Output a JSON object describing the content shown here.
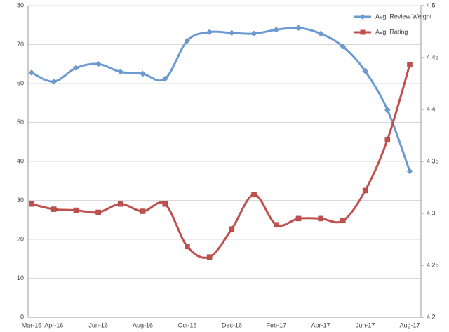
{
  "chart_data": {
    "type": "line",
    "categories": [
      "Mar-16",
      "Apr-16",
      null,
      "Jun-16",
      null,
      "Aug-16",
      null,
      "Oct-16",
      null,
      "Dec-16",
      null,
      "Feb-17",
      null,
      "Apr-17",
      null,
      "Jun-17",
      null,
      "Aug-17"
    ],
    "series": [
      {
        "name": "Avg. Review Weight",
        "color": "#6c9bd2",
        "marker": "diamond",
        "values": [
          62.8,
          60.5,
          64,
          65,
          63,
          62.5,
          61.2,
          71,
          73.2,
          73,
          72.8,
          73.8,
          74.3,
          72.8,
          69.5,
          63.2,
          53.2,
          37.5
        ]
      },
      {
        "name": "Avg. Rating",
        "color": "#c0504d",
        "marker": "square",
        "axis": "y2",
        "values": [
          4.309,
          4.304,
          4.303,
          4.301,
          4.309,
          4.302,
          4.309,
          4.268,
          4.258,
          4.285,
          4.318,
          4.289,
          4.295,
          4.295,
          4.293,
          4.322,
          4.371,
          4.443
        ]
      }
    ],
    "ylim": [
      0,
      80
    ],
    "yticks": [
      0,
      10,
      20,
      30,
      40,
      50,
      60,
      70,
      80
    ],
    "y2lim": [
      4.2,
      4.5
    ],
    "y2ticks": [
      4.2,
      4.25,
      4.3,
      4.35,
      4.4,
      4.45,
      4.5
    ],
    "grid": true,
    "legend": "top-right",
    "smooth": true
  }
}
